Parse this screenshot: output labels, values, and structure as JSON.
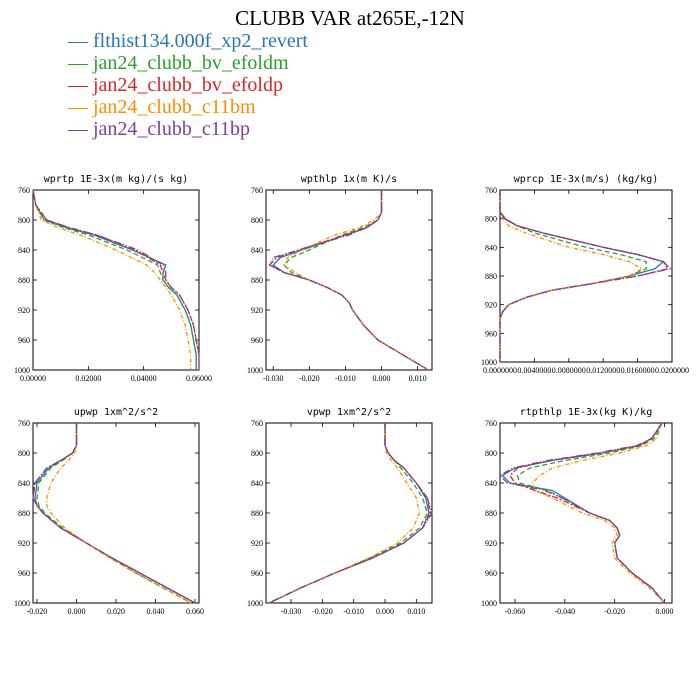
{
  "title": "CLUBB VAR at265E,-12N",
  "colors": {
    "blue": "#2a75b3",
    "green": "#2ca02c",
    "red": "#d62728",
    "orange": "#ff8c00",
    "purple": "#7b3fa0"
  },
  "legend": [
    {
      "label": "flthist134.000f_xp2_revert",
      "color": "#2a75b3"
    },
    {
      "label": "jan24_clubb_bv_efoldm",
      "color": "#2ca02c"
    },
    {
      "label": "jan24_clubb_bv_efoldp",
      "color": "#d62728"
    },
    {
      "label": "jan24_clubb_c11bm",
      "color": "#ff8c00"
    },
    {
      "label": "jan24_clubb_c11bp",
      "color": "#7b3fa0"
    }
  ],
  "chart_data": [
    {
      "type": "line",
      "title": "wprtp  1E-3x(m kg)/(s kg)",
      "xlim": [
        0,
        0.06
      ],
      "ylim": [
        760,
        1000
      ],
      "xticks": [
        0,
        0.02,
        0.04,
        0.06
      ],
      "xtick_labels": [
        "0.00000",
        "0.02000",
        "0.04000",
        "0.06000"
      ],
      "yticks": [
        760,
        800,
        840,
        880,
        920,
        960,
        1000
      ],
      "ytick_labels": [
        "760",
        "800",
        "840",
        "880",
        "920",
        "960",
        "1000"
      ],
      "y": [
        760,
        780,
        800,
        810,
        820,
        840,
        860,
        870,
        880,
        890,
        900,
        920,
        940,
        960,
        980,
        1000
      ],
      "series": [
        {
          "name": "flthist134.000f_xp2_revert",
          "color": "#2a75b3",
          "values": [
            0.0,
            0.001,
            0.004,
            0.012,
            0.022,
            0.036,
            0.048,
            0.047,
            0.047,
            0.049,
            0.052,
            0.055,
            0.057,
            0.058,
            0.059,
            0.059
          ]
        },
        {
          "name": "jan24_clubb_bv_efoldm",
          "color": "#2ca02c",
          "values": [
            0.0,
            0.001,
            0.004,
            0.011,
            0.02,
            0.034,
            0.045,
            0.046,
            0.047,
            0.049,
            0.052,
            0.055,
            0.057,
            0.058,
            0.059,
            0.059
          ]
        },
        {
          "name": "jan24_clubb_bv_efoldp",
          "color": "#d62728",
          "values": [
            0.0,
            0.001,
            0.005,
            0.013,
            0.023,
            0.037,
            0.046,
            0.047,
            0.048,
            0.05,
            0.053,
            0.056,
            0.058,
            0.059,
            0.06,
            0.06
          ]
        },
        {
          "name": "jan24_clubb_c11bm",
          "color": "#ff8c00",
          "values": [
            0.0,
            0.001,
            0.003,
            0.009,
            0.017,
            0.03,
            0.041,
            0.044,
            0.046,
            0.048,
            0.05,
            0.053,
            0.055,
            0.056,
            0.057,
            0.057
          ]
        },
        {
          "name": "jan24_clubb_c11bp",
          "color": "#7b3fa0",
          "values": [
            0.0,
            0.001,
            0.005,
            0.013,
            0.023,
            0.038,
            0.047,
            0.048,
            0.048,
            0.05,
            0.053,
            0.056,
            0.058,
            0.059,
            0.06,
            0.06
          ]
        }
      ]
    },
    {
      "type": "line",
      "title": "wpthlp  1x(m K)/s",
      "xlim": [
        -0.032,
        0.014
      ],
      "ylim": [
        760,
        1000
      ],
      "xticks": [
        -0.03,
        -0.02,
        -0.01,
        0,
        0.01
      ],
      "xtick_labels": [
        "-0.030",
        "-0.020",
        "-0.010",
        "0.000",
        "0.010"
      ],
      "yticks": [
        760,
        800,
        840,
        880,
        920,
        960,
        1000
      ],
      "ytick_labels": [
        "760",
        "800",
        "840",
        "880",
        "920",
        "960",
        "1000"
      ],
      "y": [
        760,
        790,
        800,
        810,
        820,
        840,
        850,
        860,
        870,
        880,
        890,
        900,
        910,
        920,
        940,
        960,
        980,
        1000
      ],
      "series": [
        {
          "name": "flthist134.000f_xp2_revert",
          "color": "#2a75b3",
          "values": [
            0.0,
            0.0,
            -0.001,
            -0.004,
            -0.01,
            -0.022,
            -0.028,
            -0.03,
            -0.027,
            -0.02,
            -0.015,
            -0.011,
            -0.009,
            -0.008,
            -0.005,
            -0.001,
            0.006,
            0.013
          ]
        },
        {
          "name": "jan24_clubb_bv_efoldm",
          "color": "#2ca02c",
          "values": [
            0.0,
            0.0,
            -0.001,
            -0.005,
            -0.011,
            -0.02,
            -0.025,
            -0.027,
            -0.025,
            -0.02,
            -0.015,
            -0.011,
            -0.009,
            -0.008,
            -0.005,
            -0.001,
            0.006,
            0.013
          ]
        },
        {
          "name": "jan24_clubb_bv_efoldp",
          "color": "#d62728",
          "values": [
            0.0,
            0.0,
            -0.001,
            -0.004,
            -0.01,
            -0.023,
            -0.029,
            -0.031,
            -0.027,
            -0.02,
            -0.015,
            -0.011,
            -0.009,
            -0.008,
            -0.005,
            -0.001,
            0.006,
            0.013
          ]
        },
        {
          "name": "jan24_clubb_c11bm",
          "color": "#ff8c00",
          "values": [
            0.0,
            0.0,
            -0.002,
            -0.006,
            -0.013,
            -0.022,
            -0.026,
            -0.027,
            -0.024,
            -0.02,
            -0.015,
            -0.011,
            -0.009,
            -0.008,
            -0.005,
            -0.001,
            0.006,
            0.013
          ]
        },
        {
          "name": "jan24_clubb_c11bp",
          "color": "#7b3fa0",
          "values": [
            0.0,
            0.0,
            -0.001,
            -0.004,
            -0.009,
            -0.023,
            -0.03,
            -0.031,
            -0.027,
            -0.02,
            -0.015,
            -0.011,
            -0.009,
            -0.008,
            -0.005,
            -0.001,
            0.006,
            0.013
          ]
        }
      ]
    },
    {
      "type": "line",
      "title": "wprcp  1E-3x(m/s) (kg/kg)",
      "xlim": [
        0,
        0.02
      ],
      "ylim": [
        760,
        1000
      ],
      "xticks": [
        0,
        0.004,
        0.008,
        0.012,
        0.016,
        0.02
      ],
      "xtick_labels": [
        "0.0000000",
        "0.0040000",
        "0.0080000",
        "0.0120000",
        "0.0160000",
        "0.0200000"
      ],
      "yticks": [
        760,
        800,
        840,
        880,
        920,
        960,
        1000
      ],
      "ytick_labels": [
        "760",
        "800",
        "840",
        "880",
        "920",
        "960",
        "1000"
      ],
      "y": [
        760,
        790,
        800,
        810,
        820,
        840,
        850,
        860,
        870,
        880,
        890,
        900,
        910,
        920,
        930,
        940,
        960,
        1000
      ],
      "series": [
        {
          "name": "flthist134.000f_xp2_revert",
          "color": "#2a75b3",
          "values": [
            0.0,
            0.0,
            0.0005,
            0.002,
            0.005,
            0.012,
            0.016,
            0.019,
            0.018,
            0.015,
            0.011,
            0.006,
            0.003,
            0.001,
            0.0003,
            0.0,
            0.0,
            0.0
          ]
        },
        {
          "name": "jan24_clubb_bv_efoldm",
          "color": "#2ca02c",
          "values": [
            0.0,
            0.0,
            0.0005,
            0.002,
            0.004,
            0.01,
            0.014,
            0.017,
            0.017,
            0.015,
            0.011,
            0.006,
            0.003,
            0.001,
            0.0003,
            0.0,
            0.0,
            0.0
          ]
        },
        {
          "name": "jan24_clubb_bv_efoldp",
          "color": "#d62728",
          "values": [
            0.0,
            0.0,
            0.0006,
            0.002,
            0.005,
            0.012,
            0.016,
            0.019,
            0.0195,
            0.016,
            0.011,
            0.006,
            0.003,
            0.001,
            0.0003,
            0.0,
            0.0,
            0.0
          ]
        },
        {
          "name": "jan24_clubb_c11bm",
          "color": "#ff8c00",
          "values": [
            0.0,
            0.0,
            0.0003,
            0.001,
            0.003,
            0.008,
            0.012,
            0.015,
            0.0165,
            0.015,
            0.011,
            0.006,
            0.003,
            0.001,
            0.0003,
            0.0,
            0.0,
            0.0
          ]
        },
        {
          "name": "jan24_clubb_c11bp",
          "color": "#7b3fa0",
          "values": [
            0.0,
            0.0,
            0.0006,
            0.002,
            0.005,
            0.012,
            0.016,
            0.019,
            0.0198,
            0.016,
            0.011,
            0.006,
            0.003,
            0.001,
            0.0003,
            0.0,
            0.0,
            0.0
          ]
        }
      ]
    },
    {
      "type": "line",
      "title": "upwp  1xm^2/s^2",
      "xlim": [
        -0.022,
        0.062
      ],
      "ylim": [
        760,
        1000
      ],
      "xticks": [
        -0.02,
        0,
        0.02,
        0.04,
        0.06
      ],
      "xtick_labels": [
        "-0.020",
        "0.000",
        "0.020",
        "0.040",
        "0.060"
      ],
      "yticks": [
        760,
        800,
        840,
        880,
        920,
        960,
        1000
      ],
      "ytick_labels": [
        "760",
        "800",
        "840",
        "880",
        "920",
        "960",
        "1000"
      ],
      "y": [
        760,
        790,
        800,
        810,
        820,
        840,
        860,
        870,
        880,
        900,
        920,
        940,
        960,
        980,
        1000
      ],
      "series": [
        {
          "name": "flthist134.000f_xp2_revert",
          "color": "#2a75b3",
          "values": [
            0.0,
            0.0,
            -0.002,
            -0.008,
            -0.014,
            -0.02,
            -0.021,
            -0.02,
            -0.017,
            -0.008,
            0.005,
            0.018,
            0.032,
            0.046,
            0.06
          ]
        },
        {
          "name": "jan24_clubb_bv_efoldm",
          "color": "#2ca02c",
          "values": [
            0.0,
            0.0,
            -0.002,
            -0.007,
            -0.013,
            -0.019,
            -0.02,
            -0.019,
            -0.016,
            -0.007,
            0.005,
            0.017,
            0.03,
            0.044,
            0.058
          ]
        },
        {
          "name": "jan24_clubb_bv_efoldp",
          "color": "#d62728",
          "values": [
            0.0,
            0.0,
            -0.002,
            -0.008,
            -0.015,
            -0.021,
            -0.022,
            -0.02,
            -0.017,
            -0.008,
            0.005,
            0.018,
            0.032,
            0.046,
            0.06
          ]
        },
        {
          "name": "jan24_clubb_c11bm",
          "color": "#ff8c00",
          "values": [
            0.0,
            0.0,
            -0.001,
            -0.004,
            -0.008,
            -0.013,
            -0.015,
            -0.015,
            -0.013,
            -0.006,
            0.005,
            0.017,
            0.03,
            0.044,
            0.058
          ]
        },
        {
          "name": "jan24_clubb_c11bp",
          "color": "#7b3fa0",
          "values": [
            0.0,
            0.0,
            -0.002,
            -0.008,
            -0.015,
            -0.021,
            -0.022,
            -0.02,
            -0.017,
            -0.008,
            0.005,
            0.018,
            0.032,
            0.046,
            0.06
          ]
        }
      ]
    },
    {
      "type": "line",
      "title": "vpwp  1xm^2/s^2",
      "xlim": [
        -0.038,
        0.015
      ],
      "ylim": [
        760,
        1000
      ],
      "xticks": [
        -0.03,
        -0.02,
        -0.01,
        0,
        0.01
      ],
      "xtick_labels": [
        "-0.030",
        "-0.020",
        "-0.010",
        "0.000",
        "0.010"
      ],
      "yticks": [
        760,
        800,
        840,
        880,
        920,
        960,
        1000
      ],
      "ytick_labels": [
        "760",
        "800",
        "840",
        "880",
        "920",
        "960",
        "1000"
      ],
      "y": [
        760,
        790,
        800,
        810,
        820,
        840,
        860,
        880,
        900,
        920,
        940,
        960,
        980,
        1000
      ],
      "series": [
        {
          "name": "flthist134.000f_xp2_revert",
          "color": "#2a75b3",
          "values": [
            0.0,
            0.0,
            0.001,
            0.003,
            0.006,
            0.01,
            0.013,
            0.014,
            0.012,
            0.006,
            -0.004,
            -0.016,
            -0.027,
            -0.037
          ]
        },
        {
          "name": "jan24_clubb_bv_efoldm",
          "color": "#2ca02c",
          "values": [
            0.0,
            0.0,
            0.001,
            0.003,
            0.005,
            0.009,
            0.012,
            0.0135,
            0.011,
            0.005,
            -0.005,
            -0.016,
            -0.027,
            -0.037
          ]
        },
        {
          "name": "jan24_clubb_bv_efoldp",
          "color": "#d62728",
          "values": [
            0.0,
            0.0,
            0.001,
            0.003,
            0.006,
            0.01,
            0.0135,
            0.0145,
            0.012,
            0.006,
            -0.004,
            -0.016,
            -0.027,
            -0.037
          ]
        },
        {
          "name": "jan24_clubb_c11bm",
          "color": "#ff8c00",
          "values": [
            0.0,
            0.0,
            0.0005,
            0.002,
            0.004,
            0.007,
            0.01,
            0.011,
            0.009,
            0.004,
            -0.005,
            -0.016,
            -0.027,
            -0.037
          ]
        },
        {
          "name": "jan24_clubb_c11bp",
          "color": "#7b3fa0",
          "values": [
            0.0,
            0.0,
            0.001,
            0.003,
            0.006,
            0.01,
            0.0135,
            0.015,
            0.012,
            0.006,
            -0.004,
            -0.016,
            -0.027,
            -0.037
          ]
        }
      ]
    },
    {
      "type": "line",
      "title": "rtpthlp  1E-3x(kg K)/kg",
      "xlim": [
        -0.066,
        0.003
      ],
      "ylim": [
        760,
        1000
      ],
      "xticks": [
        -0.06,
        -0.04,
        -0.02,
        0
      ],
      "xtick_labels": [
        "-0.060",
        "-0.040",
        "-0.020",
        "0.000"
      ],
      "yticks": [
        760,
        800,
        840,
        880,
        920,
        960,
        1000
      ],
      "ytick_labels": [
        "760",
        "800",
        "840",
        "880",
        "920",
        "960",
        "1000"
      ],
      "y": [
        760,
        780,
        790,
        800,
        810,
        820,
        830,
        840,
        850,
        860,
        880,
        890,
        900,
        910,
        920,
        940,
        960,
        980,
        1000
      ],
      "series": [
        {
          "name": "flthist134.000f_xp2_revert",
          "color": "#2a75b3",
          "values": [
            -0.001,
            -0.005,
            -0.01,
            -0.025,
            -0.045,
            -0.06,
            -0.065,
            -0.062,
            -0.045,
            -0.04,
            -0.03,
            -0.022,
            -0.019,
            -0.018,
            -0.02,
            -0.019,
            -0.013,
            -0.005,
            0.0
          ]
        },
        {
          "name": "jan24_clubb_bv_efoldm",
          "color": "#2ca02c",
          "values": [
            -0.001,
            -0.004,
            -0.009,
            -0.022,
            -0.04,
            -0.054,
            -0.059,
            -0.058,
            -0.047,
            -0.041,
            -0.03,
            -0.022,
            -0.019,
            -0.018,
            -0.02,
            -0.019,
            -0.013,
            -0.005,
            0.0
          ]
        },
        {
          "name": "jan24_clubb_bv_efoldp",
          "color": "#d62728",
          "values": [
            -0.001,
            -0.005,
            -0.01,
            -0.026,
            -0.046,
            -0.059,
            -0.062,
            -0.06,
            -0.052,
            -0.043,
            -0.03,
            -0.022,
            -0.019,
            -0.018,
            -0.02,
            -0.019,
            -0.013,
            -0.005,
            0.0
          ]
        },
        {
          "name": "jan24_clubb_c11bm",
          "color": "#ff8c00",
          "values": [
            -0.001,
            -0.003,
            -0.007,
            -0.018,
            -0.033,
            -0.045,
            -0.05,
            -0.053,
            -0.052,
            -0.045,
            -0.033,
            -0.024,
            -0.02,
            -0.019,
            -0.021,
            -0.02,
            -0.014,
            -0.006,
            0.0
          ]
        },
        {
          "name": "jan24_clubb_c11bp",
          "color": "#7b3fa0",
          "values": [
            -0.001,
            -0.005,
            -0.011,
            -0.027,
            -0.047,
            -0.061,
            -0.066,
            -0.063,
            -0.048,
            -0.041,
            -0.03,
            -0.022,
            -0.019,
            -0.018,
            -0.02,
            -0.019,
            -0.013,
            -0.005,
            0.0
          ]
        }
      ]
    }
  ]
}
